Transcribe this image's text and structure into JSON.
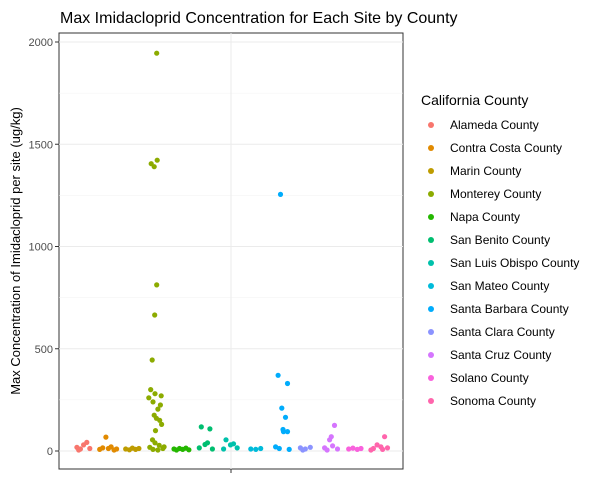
{
  "chart_data": {
    "type": "scatter",
    "title": "Max Imidacloprid Concentration for Each Site by County",
    "xlabel": "",
    "ylabel": "Max Concentration of Imidacloprid per site (ug/kg)",
    "ylim": [
      -80,
      2060
    ],
    "yticks": [
      0,
      500,
      1000,
      1500,
      2000
    ],
    "grid": true,
    "legend": {
      "title": "California County",
      "placement": "right"
    },
    "series": [
      {
        "name": "Alameda County",
        "color": "#F8766D",
        "points": [
          {
            "slot": 0.28,
            "y": 18
          },
          {
            "slot": 0.42,
            "y": 10
          },
          {
            "slot": 0.55,
            "y": 30
          },
          {
            "slot": 0.68,
            "y": 42
          },
          {
            "slot": 0.8,
            "y": 12
          },
          {
            "slot": 0.35,
            "y": 5
          }
        ]
      },
      {
        "name": "Contra Costa County",
        "color": "#E18A00",
        "points": [
          {
            "slot": 0.2,
            "y": 8
          },
          {
            "slot": 0.32,
            "y": 15
          },
          {
            "slot": 0.45,
            "y": 68
          },
          {
            "slot": 0.55,
            "y": 12
          },
          {
            "slot": 0.66,
            "y": 20
          },
          {
            "slot": 0.78,
            "y": 5
          },
          {
            "slot": 0.88,
            "y": 10
          }
        ]
      },
      {
        "name": "Marin County",
        "color": "#BE9C00",
        "points": [
          {
            "slot": 0.25,
            "y": 10
          },
          {
            "slot": 0.4,
            "y": 6
          },
          {
            "slot": 0.52,
            "y": 14
          },
          {
            "slot": 0.65,
            "y": 8
          },
          {
            "slot": 0.78,
            "y": 12
          }
        ]
      },
      {
        "name": "Monterey County",
        "color": "#8CAB00",
        "points": [
          {
            "slot": 0.5,
            "y": 1945
          },
          {
            "slot": 0.52,
            "y": 1422
          },
          {
            "slot": 0.28,
            "y": 1405
          },
          {
            "slot": 0.4,
            "y": 1390
          },
          {
            "slot": 0.5,
            "y": 812
          },
          {
            "slot": 0.42,
            "y": 665
          },
          {
            "slot": 0.32,
            "y": 445
          },
          {
            "slot": 0.26,
            "y": 300
          },
          {
            "slot": 0.43,
            "y": 280
          },
          {
            "slot": 0.68,
            "y": 270
          },
          {
            "slot": 0.18,
            "y": 260
          },
          {
            "slot": 0.35,
            "y": 240
          },
          {
            "slot": 0.65,
            "y": 225
          },
          {
            "slot": 0.55,
            "y": 205
          },
          {
            "slot": 0.4,
            "y": 175
          },
          {
            "slot": 0.49,
            "y": 160
          },
          {
            "slot": 0.62,
            "y": 150
          },
          {
            "slot": 0.7,
            "y": 130
          },
          {
            "slot": 0.45,
            "y": 100
          },
          {
            "slot": 0.33,
            "y": 55
          },
          {
            "slot": 0.43,
            "y": 40
          },
          {
            "slot": 0.6,
            "y": 28
          },
          {
            "slot": 0.22,
            "y": 18
          },
          {
            "slot": 0.75,
            "y": 12
          },
          {
            "slot": 0.35,
            "y": 8
          },
          {
            "slot": 0.55,
            "y": 5
          },
          {
            "slot": 0.8,
            "y": 20
          }
        ]
      },
      {
        "name": "Napa County",
        "color": "#24B700",
        "points": [
          {
            "slot": 0.2,
            "y": 10
          },
          {
            "slot": 0.3,
            "y": 5
          },
          {
            "slot": 0.42,
            "y": 12
          },
          {
            "slot": 0.55,
            "y": 8
          },
          {
            "slot": 0.68,
            "y": 14
          },
          {
            "slot": 0.8,
            "y": 6
          }
        ]
      },
      {
        "name": "San Benito County",
        "color": "#00BE70",
        "points": [
          {
            "slot": 0.3,
            "y": 118
          },
          {
            "slot": 0.65,
            "y": 108
          },
          {
            "slot": 0.55,
            "y": 40
          },
          {
            "slot": 0.45,
            "y": 32
          },
          {
            "slot": 0.22,
            "y": 15
          },
          {
            "slot": 0.75,
            "y": 10
          }
        ]
      },
      {
        "name": "San Luis Obispo County",
        "color": "#00C1AB",
        "points": [
          {
            "slot": 0.3,
            "y": 55
          },
          {
            "slot": 0.48,
            "y": 30
          },
          {
            "slot": 0.6,
            "y": 35
          },
          {
            "slot": 0.75,
            "y": 15
          },
          {
            "slot": 0.2,
            "y": 10
          }
        ]
      },
      {
        "name": "San Mateo County",
        "color": "#00BBDA",
        "points": [
          {
            "slot": 0.3,
            "y": 10
          },
          {
            "slot": 0.5,
            "y": 8
          },
          {
            "slot": 0.7,
            "y": 12
          }
        ]
      },
      {
        "name": "Santa Barbara County",
        "color": "#00ACFC",
        "points": [
          {
            "slot": 0.5,
            "y": 1255
          },
          {
            "slot": 0.4,
            "y": 370
          },
          {
            "slot": 0.78,
            "y": 330
          },
          {
            "slot": 0.55,
            "y": 210
          },
          {
            "slot": 0.7,
            "y": 165
          },
          {
            "slot": 0.6,
            "y": 105
          },
          {
            "slot": 0.78,
            "y": 95
          },
          {
            "slot": 0.62,
            "y": 95
          },
          {
            "slot": 0.3,
            "y": 20
          },
          {
            "slot": 0.45,
            "y": 12
          },
          {
            "slot": 0.85,
            "y": 8
          }
        ]
      },
      {
        "name": "Santa Clara County",
        "color": "#8B93FF",
        "points": [
          {
            "slot": 0.3,
            "y": 15
          },
          {
            "slot": 0.5,
            "y": 10
          },
          {
            "slot": 0.7,
            "y": 18
          },
          {
            "slot": 0.4,
            "y": 5
          }
        ]
      },
      {
        "name": "Santa Cruz County",
        "color": "#D575FE",
        "points": [
          {
            "slot": 0.68,
            "y": 125
          },
          {
            "slot": 0.55,
            "y": 70
          },
          {
            "slot": 0.48,
            "y": 55
          },
          {
            "slot": 0.28,
            "y": 15
          },
          {
            "slot": 0.6,
            "y": 25
          },
          {
            "slot": 0.8,
            "y": 10
          },
          {
            "slot": 0.38,
            "y": 5
          }
        ]
      },
      {
        "name": "Solano County",
        "color": "#F962DD",
        "points": [
          {
            "slot": 0.25,
            "y": 10
          },
          {
            "slot": 0.42,
            "y": 14
          },
          {
            "slot": 0.6,
            "y": 8
          },
          {
            "slot": 0.75,
            "y": 12
          }
        ]
      },
      {
        "name": "Sonoma County",
        "color": "#FF65AC",
        "points": [
          {
            "slot": 0.7,
            "y": 70
          },
          {
            "slot": 0.4,
            "y": 30
          },
          {
            "slot": 0.55,
            "y": 20
          },
          {
            "slot": 0.25,
            "y": 12
          },
          {
            "slot": 0.82,
            "y": 15
          },
          {
            "slot": 0.15,
            "y": 5
          },
          {
            "slot": 0.62,
            "y": 8
          }
        ]
      }
    ]
  }
}
